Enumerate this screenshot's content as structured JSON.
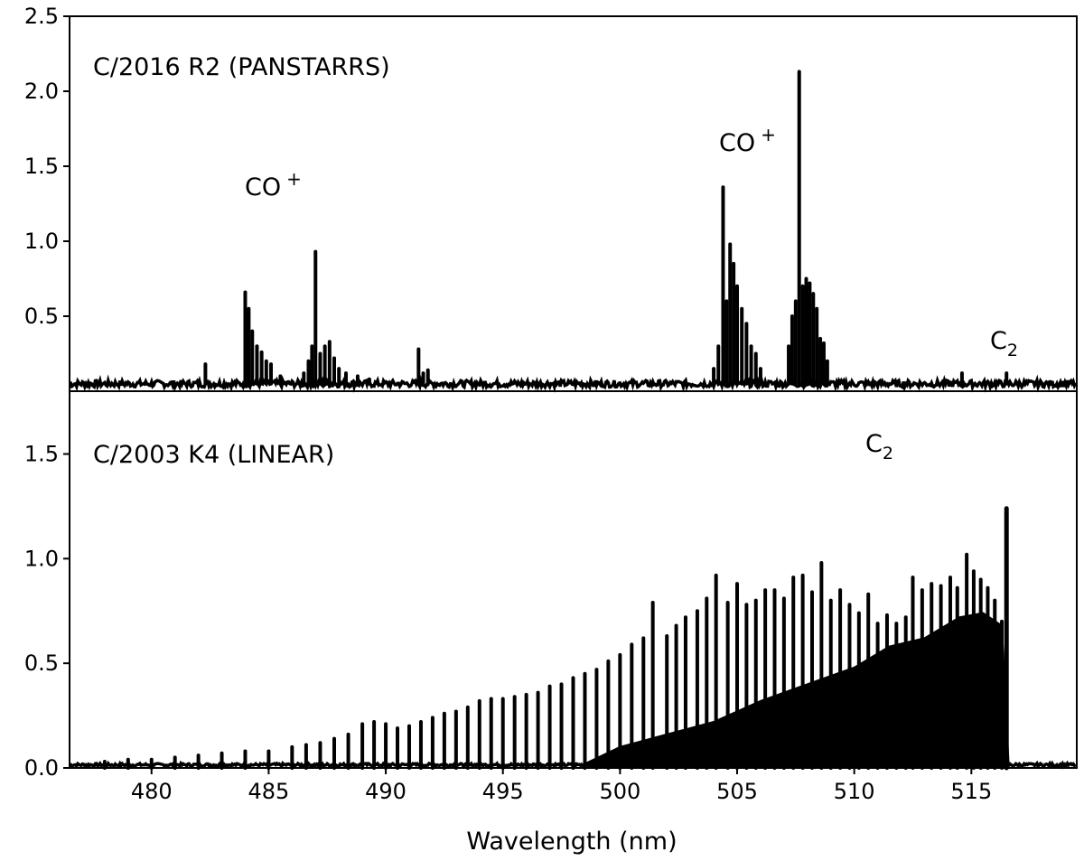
{
  "chart_data": [
    {
      "type": "line",
      "panel": "top",
      "annotations": {
        "comet": "C/2016 R2 (PANSTARRS)",
        "co_left": "CO",
        "co_right": "CO",
        "co_sup": "+",
        "c2": "C",
        "c2_sub": "2"
      },
      "xlim": [
        476.5,
        519.5
      ],
      "ylim": [
        0.0,
        2.5
      ],
      "yticks": [
        0.5,
        1.0,
        1.5,
        2.0,
        2.5
      ],
      "ytick_labels": [
        "0.5",
        "1.0",
        "1.5",
        "2.0",
        "2.5"
      ],
      "baseline": 0.05,
      "peaks": [
        {
          "x": 482.3,
          "y": 0.18
        },
        {
          "x": 484.0,
          "y": 0.66
        },
        {
          "x": 484.15,
          "y": 0.55
        },
        {
          "x": 484.3,
          "y": 0.4
        },
        {
          "x": 484.5,
          "y": 0.3
        },
        {
          "x": 484.7,
          "y": 0.26
        },
        {
          "x": 484.9,
          "y": 0.2
        },
        {
          "x": 485.1,
          "y": 0.18
        },
        {
          "x": 485.5,
          "y": 0.1
        },
        {
          "x": 486.5,
          "y": 0.12
        },
        {
          "x": 486.7,
          "y": 0.2
        },
        {
          "x": 486.85,
          "y": 0.3
        },
        {
          "x": 487.0,
          "y": 0.93
        },
        {
          "x": 487.2,
          "y": 0.25
        },
        {
          "x": 487.4,
          "y": 0.3
        },
        {
          "x": 487.6,
          "y": 0.33
        },
        {
          "x": 487.8,
          "y": 0.22
        },
        {
          "x": 488.0,
          "y": 0.15
        },
        {
          "x": 488.3,
          "y": 0.12
        },
        {
          "x": 488.8,
          "y": 0.1
        },
        {
          "x": 489.3,
          "y": 0.08
        },
        {
          "x": 491.4,
          "y": 0.28
        },
        {
          "x": 491.6,
          "y": 0.12
        },
        {
          "x": 491.8,
          "y": 0.14
        },
        {
          "x": 504.0,
          "y": 0.15
        },
        {
          "x": 504.2,
          "y": 0.3
        },
        {
          "x": 504.4,
          "y": 1.36
        },
        {
          "x": 504.55,
          "y": 0.6
        },
        {
          "x": 504.7,
          "y": 0.98
        },
        {
          "x": 504.85,
          "y": 0.85
        },
        {
          "x": 505.0,
          "y": 0.7
        },
        {
          "x": 505.2,
          "y": 0.55
        },
        {
          "x": 505.4,
          "y": 0.45
        },
        {
          "x": 505.6,
          "y": 0.3
        },
        {
          "x": 505.8,
          "y": 0.25
        },
        {
          "x": 506.0,
          "y": 0.15
        },
        {
          "x": 507.2,
          "y": 0.3
        },
        {
          "x": 507.35,
          "y": 0.5
        },
        {
          "x": 507.5,
          "y": 0.6
        },
        {
          "x": 507.65,
          "y": 2.13
        },
        {
          "x": 507.8,
          "y": 0.7
        },
        {
          "x": 507.95,
          "y": 0.75
        },
        {
          "x": 508.1,
          "y": 0.72
        },
        {
          "x": 508.25,
          "y": 0.65
        },
        {
          "x": 508.4,
          "y": 0.55
        },
        {
          "x": 508.55,
          "y": 0.35
        },
        {
          "x": 508.7,
          "y": 0.32
        },
        {
          "x": 508.85,
          "y": 0.2
        },
        {
          "x": 514.6,
          "y": 0.12
        },
        {
          "x": 516.5,
          "y": 0.12
        }
      ]
    },
    {
      "type": "line",
      "panel": "bottom",
      "annotations": {
        "comet": "C/2003 K4 (LINEAR)",
        "c2": "C",
        "c2_sub": "2"
      },
      "xlim": [
        476.5,
        519.5
      ],
      "ylim": [
        0.0,
        1.8
      ],
      "yticks": [
        0.0,
        0.5,
        1.0,
        1.5
      ],
      "ytick_labels": [
        "0.0",
        "0.5",
        "1.0",
        "1.5"
      ],
      "xticks": [
        480,
        485,
        490,
        495,
        500,
        505,
        510,
        515
      ],
      "xtick_labels": [
        "480",
        "485",
        "490",
        "495",
        "500",
        "505",
        "510",
        "515"
      ],
      "xlabel": "Wavelength (nm)",
      "band_head": {
        "x": 516.5,
        "y": 1.24
      },
      "comb_lines": [
        {
          "x": 478.0,
          "y": 0.03
        },
        {
          "x": 479.0,
          "y": 0.04
        },
        {
          "x": 480.0,
          "y": 0.04
        },
        {
          "x": 481.0,
          "y": 0.05
        },
        {
          "x": 482.0,
          "y": 0.06
        },
        {
          "x": 483.0,
          "y": 0.07
        },
        {
          "x": 484.0,
          "y": 0.08
        },
        {
          "x": 485.0,
          "y": 0.08
        },
        {
          "x": 486.0,
          "y": 0.1
        },
        {
          "x": 486.6,
          "y": 0.11
        },
        {
          "x": 487.2,
          "y": 0.12
        },
        {
          "x": 487.8,
          "y": 0.14
        },
        {
          "x": 488.4,
          "y": 0.16
        },
        {
          "x": 489.0,
          "y": 0.21
        },
        {
          "x": 489.5,
          "y": 0.22
        },
        {
          "x": 490.0,
          "y": 0.21
        },
        {
          "x": 490.5,
          "y": 0.19
        },
        {
          "x": 491.0,
          "y": 0.2
        },
        {
          "x": 491.5,
          "y": 0.22
        },
        {
          "x": 492.0,
          "y": 0.24
        },
        {
          "x": 492.5,
          "y": 0.26
        },
        {
          "x": 493.0,
          "y": 0.27
        },
        {
          "x": 493.5,
          "y": 0.29
        },
        {
          "x": 494.0,
          "y": 0.32
        },
        {
          "x": 494.5,
          "y": 0.33
        },
        {
          "x": 495.0,
          "y": 0.33
        },
        {
          "x": 495.5,
          "y": 0.34
        },
        {
          "x": 496.0,
          "y": 0.35
        },
        {
          "x": 496.5,
          "y": 0.36
        },
        {
          "x": 497.0,
          "y": 0.39
        },
        {
          "x": 497.5,
          "y": 0.4
        },
        {
          "x": 498.0,
          "y": 0.43
        },
        {
          "x": 498.5,
          "y": 0.45
        },
        {
          "x": 499.0,
          "y": 0.47
        },
        {
          "x": 499.5,
          "y": 0.51
        },
        {
          "x": 500.0,
          "y": 0.54
        },
        {
          "x": 500.5,
          "y": 0.59
        },
        {
          "x": 501.0,
          "y": 0.62
        },
        {
          "x": 501.4,
          "y": 0.79
        },
        {
          "x": 502.0,
          "y": 0.63
        },
        {
          "x": 502.4,
          "y": 0.68
        },
        {
          "x": 502.8,
          "y": 0.72
        },
        {
          "x": 503.3,
          "y": 0.75
        },
        {
          "x": 503.7,
          "y": 0.81
        },
        {
          "x": 504.1,
          "y": 0.92
        },
        {
          "x": 504.6,
          "y": 0.79
        },
        {
          "x": 505.0,
          "y": 0.88
        },
        {
          "x": 505.4,
          "y": 0.78
        },
        {
          "x": 505.8,
          "y": 0.8
        },
        {
          "x": 506.2,
          "y": 0.85
        },
        {
          "x": 506.6,
          "y": 0.85
        },
        {
          "x": 507.0,
          "y": 0.81
        },
        {
          "x": 507.4,
          "y": 0.91
        },
        {
          "x": 507.8,
          "y": 0.92
        },
        {
          "x": 508.2,
          "y": 0.84
        },
        {
          "x": 508.6,
          "y": 0.98
        },
        {
          "x": 509.0,
          "y": 0.8
        },
        {
          "x": 509.4,
          "y": 0.85
        },
        {
          "x": 509.8,
          "y": 0.78
        },
        {
          "x": 510.2,
          "y": 0.74
        },
        {
          "x": 510.6,
          "y": 0.83
        },
        {
          "x": 511.0,
          "y": 0.69
        },
        {
          "x": 511.4,
          "y": 0.73
        },
        {
          "x": 511.8,
          "y": 0.69
        },
        {
          "x": 512.2,
          "y": 0.72
        },
        {
          "x": 512.5,
          "y": 0.91
        },
        {
          "x": 512.9,
          "y": 0.85
        },
        {
          "x": 513.3,
          "y": 0.88
        },
        {
          "x": 513.7,
          "y": 0.87
        },
        {
          "x": 514.1,
          "y": 0.91
        },
        {
          "x": 514.4,
          "y": 0.86
        },
        {
          "x": 514.8,
          "y": 1.02
        },
        {
          "x": 515.1,
          "y": 0.94
        },
        {
          "x": 515.4,
          "y": 0.9
        },
        {
          "x": 515.7,
          "y": 0.86
        },
        {
          "x": 516.0,
          "y": 0.8
        },
        {
          "x": 516.3,
          "y": 0.7
        }
      ],
      "fill_envelope": [
        {
          "x": 498.5,
          "y": 0.02
        },
        {
          "x": 500.0,
          "y": 0.1
        },
        {
          "x": 502.0,
          "y": 0.16
        },
        {
          "x": 504.0,
          "y": 0.22
        },
        {
          "x": 506.0,
          "y": 0.32
        },
        {
          "x": 508.0,
          "y": 0.4
        },
        {
          "x": 510.0,
          "y": 0.48
        },
        {
          "x": 511.5,
          "y": 0.58
        },
        {
          "x": 513.0,
          "y": 0.62
        },
        {
          "x": 514.5,
          "y": 0.72
        },
        {
          "x": 515.5,
          "y": 0.74
        },
        {
          "x": 516.3,
          "y": 0.68
        },
        {
          "x": 516.6,
          "y": 0.0
        }
      ]
    }
  ]
}
